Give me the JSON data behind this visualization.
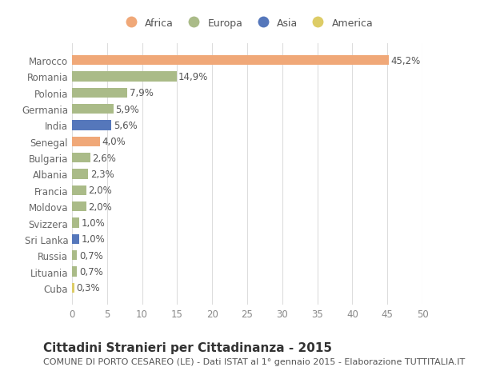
{
  "countries": [
    "Marocco",
    "Romania",
    "Polonia",
    "Germania",
    "India",
    "Senegal",
    "Bulgaria",
    "Albania",
    "Francia",
    "Moldova",
    "Svizzera",
    "Sri Lanka",
    "Russia",
    "Lituania",
    "Cuba"
  ],
  "values": [
    45.2,
    14.9,
    7.9,
    5.9,
    5.6,
    4.0,
    2.6,
    2.3,
    2.0,
    2.0,
    1.0,
    1.0,
    0.7,
    0.7,
    0.3
  ],
  "labels": [
    "45,2%",
    "14,9%",
    "7,9%",
    "5,9%",
    "5,6%",
    "4,0%",
    "2,6%",
    "2,3%",
    "2,0%",
    "2,0%",
    "1,0%",
    "1,0%",
    "0,7%",
    "0,7%",
    "0,3%"
  ],
  "continent": [
    "Africa",
    "Europa",
    "Europa",
    "Europa",
    "Asia",
    "Africa",
    "Europa",
    "Europa",
    "Europa",
    "Europa",
    "Europa",
    "Asia",
    "Europa",
    "Europa",
    "America"
  ],
  "colors": {
    "Africa": "#F0A878",
    "Europa": "#AABB88",
    "Asia": "#5577BB",
    "America": "#DDCC66"
  },
  "legend_order": [
    "Africa",
    "Europa",
    "Asia",
    "America"
  ],
  "legend_colors": [
    "#F0A878",
    "#AABB88",
    "#5577BB",
    "#DDCC66"
  ],
  "title": "Cittadini Stranieri per Cittadinanza - 2015",
  "subtitle": "COMUNE DI PORTO CESAREO (LE) - Dati ISTAT al 1° gennaio 2015 - Elaborazione TUTTITALIA.IT",
  "xlim": [
    0,
    50
  ],
  "xticks": [
    0,
    5,
    10,
    15,
    20,
    25,
    30,
    35,
    40,
    45,
    50
  ],
  "background_color": "#ffffff",
  "grid_color": "#dddddd",
  "bar_height": 0.6,
  "label_fontsize": 8.5,
  "title_fontsize": 11,
  "subtitle_fontsize": 8,
  "tick_fontsize": 8.5
}
